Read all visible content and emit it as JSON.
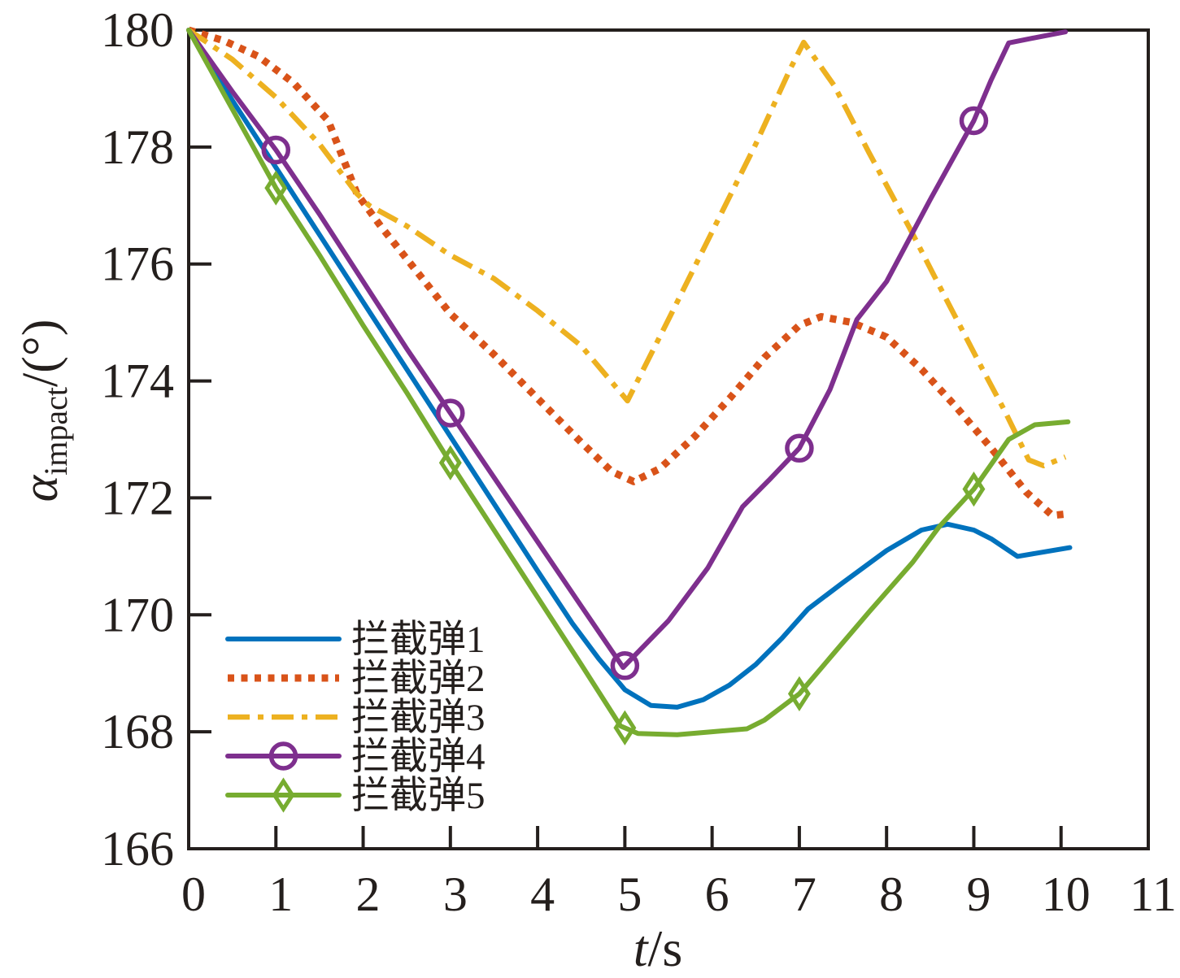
{
  "chart_data": {
    "type": "line",
    "title": "",
    "xlabel": "t/s",
    "xlabel_var": "t",
    "xlabel_unit": "/s",
    "ylabel": "α_impact/(°)",
    "ylabel_var": "α",
    "ylabel_sub": "impact",
    "ylabel_unit": "/(°)",
    "xlim": [
      0,
      11
    ],
    "ylim": [
      166,
      180
    ],
    "x_ticks": [
      0,
      1,
      2,
      3,
      4,
      5,
      6,
      7,
      8,
      9,
      10,
      11
    ],
    "y_ticks": [
      166,
      168,
      170,
      172,
      174,
      176,
      178,
      180
    ],
    "grid": false,
    "legend_position": "inside-lower-left",
    "axis_color": "#241f1d",
    "series": [
      {
        "name": "拦截弹1",
        "color": "#0072BD",
        "style": "solid",
        "marker": "none",
        "x": [
          0,
          0.5,
          1,
          1.5,
          2,
          2.5,
          3,
          3.5,
          4,
          4.4,
          4.7,
          5,
          5.3,
          5.6,
          5.9,
          6.2,
          6.5,
          6.8,
          7.1,
          7.5,
          8,
          8.4,
          8.7,
          9,
          9.2,
          9.5,
          9.7,
          10.1
        ],
        "y": [
          180,
          178.8,
          177.65,
          176.5,
          175.35,
          174.2,
          173.05,
          171.9,
          170.75,
          169.85,
          169.25,
          168.72,
          168.45,
          168.42,
          168.55,
          168.8,
          169.15,
          169.6,
          170.1,
          170.55,
          171.1,
          171.45,
          171.55,
          171.45,
          171.3,
          171.0,
          171.05,
          171.15
        ]
      },
      {
        "name": "拦截弹2",
        "color": "#D95319",
        "style": "dotted",
        "marker": "none",
        "x": [
          0,
          0.4,
          0.8,
          1.2,
          1.6,
          1.93,
          2.2,
          2.6,
          3,
          3.5,
          4,
          4.5,
          4.85,
          5.1,
          5.4,
          5.8,
          6.2,
          6.6,
          7,
          7.25,
          7.6,
          8,
          8.4,
          8.8,
          9.2,
          9.6,
          9.9,
          10.1
        ],
        "y": [
          180,
          179.82,
          179.55,
          179.1,
          178.45,
          177.2,
          176.65,
          175.9,
          175.15,
          174.45,
          173.7,
          172.95,
          172.45,
          172.28,
          172.5,
          173.05,
          173.7,
          174.4,
          174.95,
          175.1,
          175.0,
          174.75,
          174.2,
          173.55,
          172.85,
          172.1,
          171.7,
          171.73
        ]
      },
      {
        "name": "拦截弹3",
        "color": "#EDB120",
        "style": "dashdot",
        "marker": "none",
        "x": [
          0,
          0.5,
          1,
          1.5,
          1.93,
          2.07,
          2.5,
          3,
          3.5,
          4,
          4.5,
          5.03,
          5.5,
          6,
          6.5,
          6.9,
          7.05,
          7.4,
          7.8,
          8.27,
          8.7,
          9.1,
          9.35,
          9.63,
          9.8,
          10.05
        ],
        "y": [
          180,
          179.5,
          178.85,
          178.05,
          177.2,
          177.0,
          176.65,
          176.15,
          175.75,
          175.2,
          174.6,
          173.66,
          175.05,
          176.55,
          178.05,
          179.35,
          179.79,
          179.05,
          177.9,
          176.6,
          175.35,
          174.2,
          173.5,
          172.65,
          172.55,
          172.7
        ]
      },
      {
        "name": "拦截弹4",
        "color": "#7E2F8E",
        "style": "solid",
        "marker": "circle",
        "marker_x": [
          1,
          3,
          5,
          7,
          9
        ],
        "x": [
          0,
          0.5,
          1,
          1.5,
          2,
          2.5,
          3,
          3.5,
          4,
          4.5,
          4.98,
          5.5,
          5.95,
          6.35,
          6.65,
          7,
          7.35,
          7.66,
          8,
          8.5,
          9,
          9.2,
          9.4,
          9.7,
          10.05
        ],
        "y": [
          180,
          178.95,
          177.95,
          176.85,
          175.7,
          174.55,
          173.45,
          172.35,
          171.25,
          170.15,
          169.1,
          169.9,
          170.8,
          171.85,
          172.3,
          172.85,
          173.85,
          175.05,
          175.7,
          177.1,
          178.45,
          179.15,
          179.78,
          179.87,
          179.97
        ]
      },
      {
        "name": "拦截弹5",
        "color": "#77AC30",
        "style": "solid",
        "marker": "diamond",
        "marker_x": [
          1,
          3,
          5,
          7,
          9
        ],
        "x": [
          0,
          0.5,
          1,
          1.5,
          2,
          2.5,
          3,
          3.5,
          4,
          4.5,
          4.95,
          5.15,
          5.6,
          6,
          6.4,
          6.6,
          7,
          7.4,
          7.8,
          8.3,
          8.6,
          9,
          9.4,
          9.7,
          10.08
        ],
        "y": [
          180,
          178.65,
          177.3,
          176.15,
          174.95,
          173.8,
          172.6,
          171.45,
          170.3,
          169.15,
          168.1,
          167.97,
          167.95,
          168.0,
          168.05,
          168.2,
          168.65,
          169.35,
          170.05,
          170.9,
          171.5,
          172.15,
          173.0,
          173.25,
          173.3
        ]
      }
    ]
  }
}
